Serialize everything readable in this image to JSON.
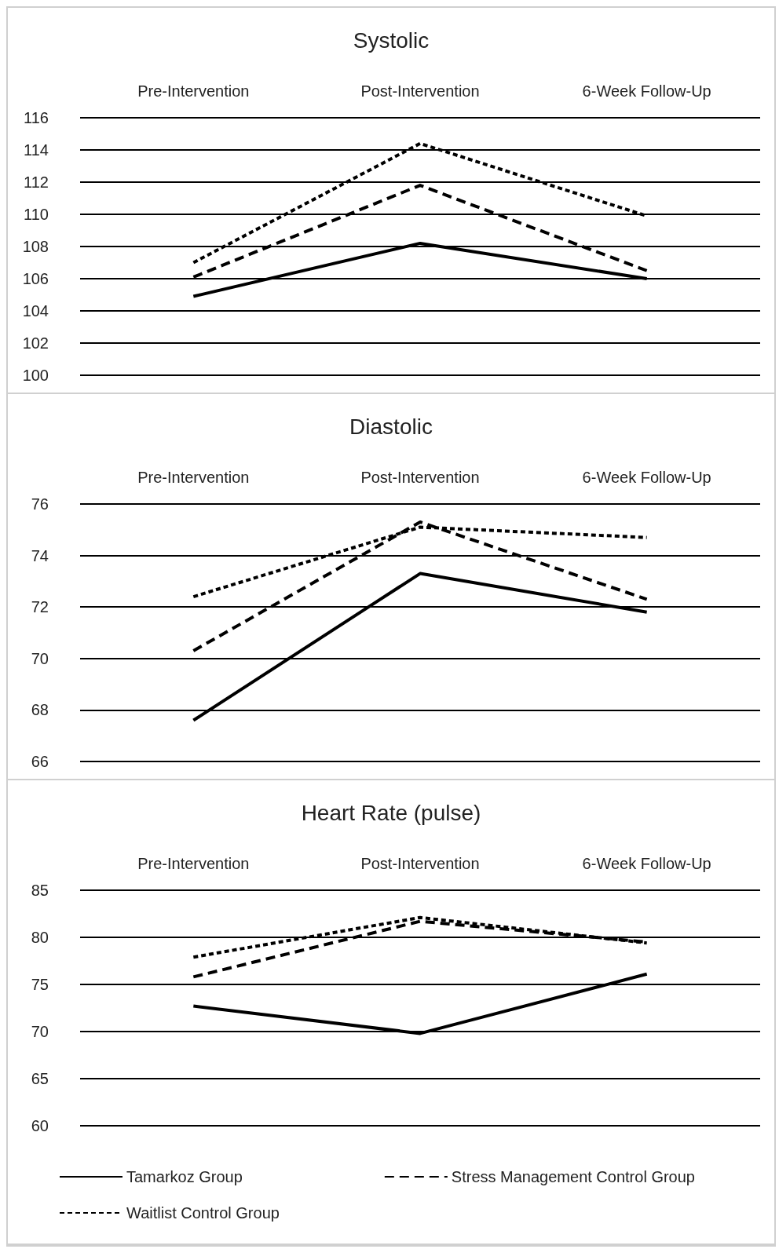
{
  "chart_data": [
    {
      "type": "line",
      "title": "Systolic",
      "categories": [
        "Pre-Intervention",
        "Post-Intervention",
        "6-Week Follow-Up"
      ],
      "ylim": [
        100,
        116
      ],
      "yticks": [
        100,
        102,
        104,
        106,
        108,
        110,
        112,
        114,
        116
      ],
      "grid": "y",
      "legend": false,
      "marker": "none",
      "series": [
        {
          "color": "#000000",
          "line_style": "solid",
          "values": [
            104.9,
            108.2,
            106.0
          ]
        },
        {
          "color": "#000000",
          "line_style": "dashed",
          "values": [
            106.1,
            111.8,
            106.5
          ]
        },
        {
          "color": "#000000",
          "line_style": "dotted",
          "values": [
            107.0,
            114.4,
            109.9
          ]
        }
      ]
    },
    {
      "type": "line",
      "title": "Diastolic",
      "categories": [
        "Pre-Intervention",
        "Post-Intervention",
        "6-Week Follow-Up"
      ],
      "ylim": [
        66,
        76
      ],
      "yticks": [
        66,
        68,
        70,
        72,
        74,
        76
      ],
      "grid": "y",
      "legend": false,
      "marker": "none",
      "series": [
        {
          "color": "#000000",
          "line_style": "solid",
          "values": [
            67.6,
            73.3,
            71.8
          ]
        },
        {
          "color": "#000000",
          "line_style": "dashed",
          "values": [
            70.3,
            75.3,
            72.3
          ]
        },
        {
          "color": "#000000",
          "line_style": "dotted",
          "values": [
            72.4,
            75.1,
            74.7
          ]
        }
      ]
    },
    {
      "type": "line",
      "title": "Heart Rate (pulse)",
      "categories": [
        "Pre-Intervention",
        "Post-Intervention",
        "6-Week Follow-Up"
      ],
      "ylim": [
        60,
        85
      ],
      "yticks": [
        60,
        65,
        70,
        75,
        80,
        85
      ],
      "grid": "y",
      "legend": "bottom",
      "marker": "none",
      "series": [
        {
          "name": "Tamarkoz Group",
          "color": "#000000",
          "line_style": "solid",
          "values": [
            72.7,
            69.8,
            76.1
          ]
        },
        {
          "name": "Stress Management Control Group",
          "color": "#000000",
          "line_style": "dashed",
          "values": [
            75.8,
            81.7,
            79.5
          ]
        },
        {
          "name": "Waitlist Control Group",
          "color": "#000000",
          "line_style": "dotted",
          "values": [
            77.9,
            82.1,
            79.4
          ]
        }
      ]
    }
  ]
}
